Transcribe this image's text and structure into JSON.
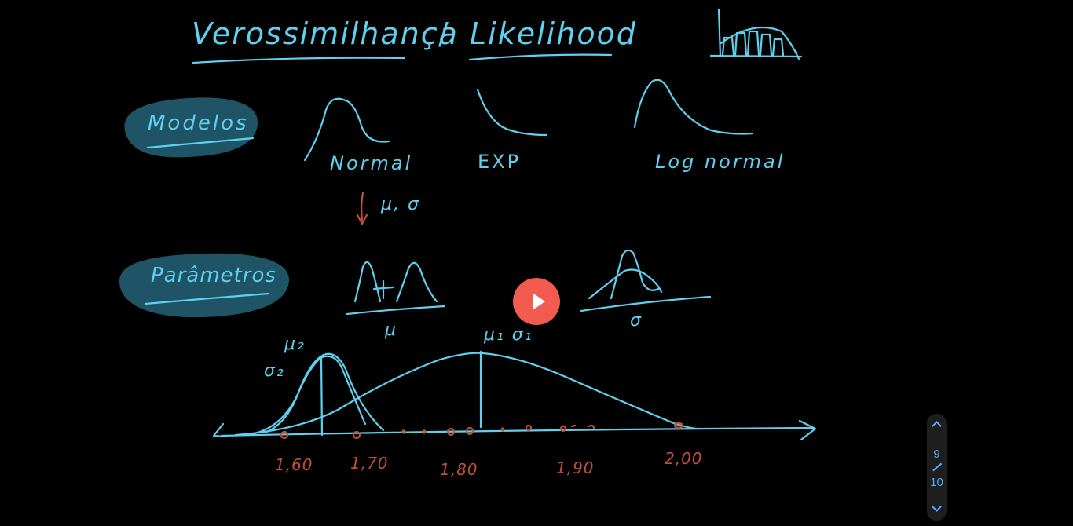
{
  "board": {
    "title_pt": "Verossimilhança",
    "title_sep": "/",
    "title_en": "Likelihood",
    "modelos_label": "Modelos",
    "parametros_label": "Parâmetros",
    "normal_label": "Normal",
    "exp_label": "EXP",
    "lognormal_label": "Log normal",
    "normal_params": "μ, σ",
    "mu_label": "μ",
    "sigma_label": "σ",
    "mu1_sigma1_label": "μ₁ σ₁",
    "mu2_label": "μ₂",
    "sigma2_label": "σ₂",
    "axis_ticks": [
      "1,60",
      "1,70",
      "1,80",
      "1,90",
      "2,00"
    ],
    "colors": {
      "ink_blue": "#5fd0ee",
      "ink_red": "#c0503a",
      "highlight": "#1f5366"
    }
  },
  "player": {
    "play_icon": "play-icon"
  },
  "pager": {
    "current": "9",
    "total": "10",
    "up_icon": "chevron-up-icon",
    "down_icon": "chevron-down-icon"
  }
}
